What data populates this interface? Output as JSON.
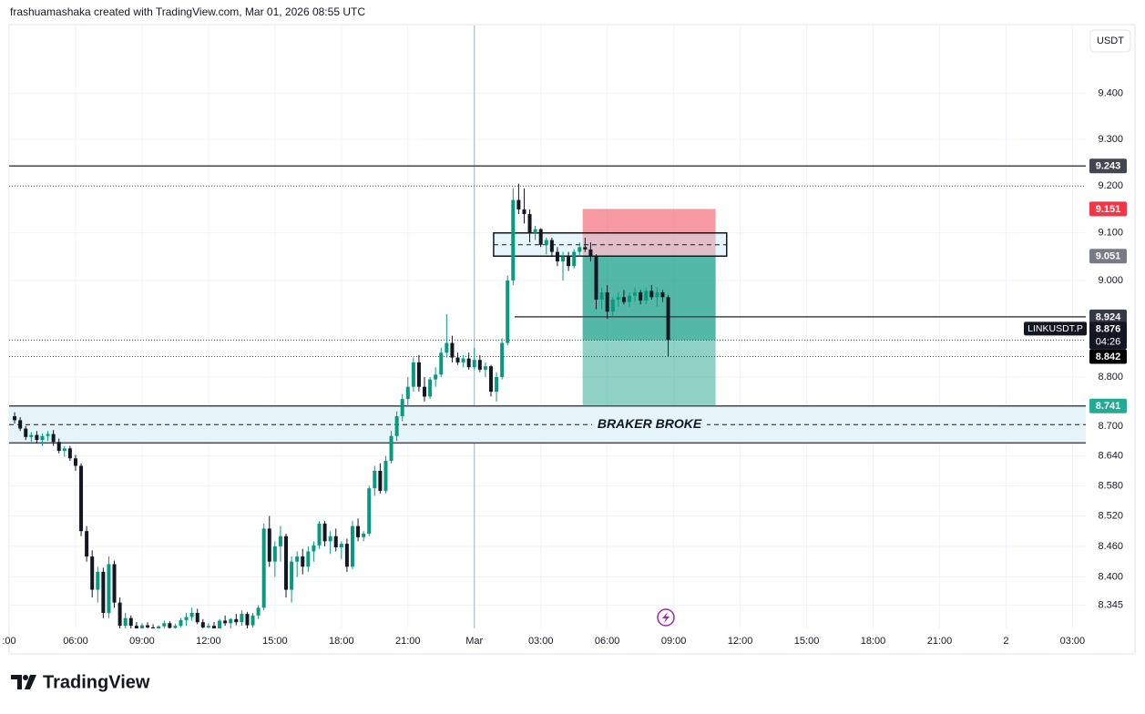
{
  "header": {
    "attribution": "frashuamashaka created with TradingView.com, Mar 01, 2026 08:55 UTC",
    "logo": "TradingView"
  },
  "chart_data": {
    "type": "candlestick",
    "currency": "USDT",
    "log_scale": true,
    "grid": true,
    "up_color": "#089981",
    "down_color": "#131722",
    "xlim": [
      3,
      51.6
    ],
    "xticks": [
      {
        "value": 3,
        "label": ":00"
      },
      {
        "value": 6,
        "label": "06:00"
      },
      {
        "value": 9,
        "label": "09:00"
      },
      {
        "value": 12,
        "label": "12:00"
      },
      {
        "value": 15,
        "label": "15:00"
      },
      {
        "value": 18,
        "label": "18:00"
      },
      {
        "value": 21,
        "label": "21:00"
      },
      {
        "value": 24,
        "label": "Mar"
      },
      {
        "value": 27,
        "label": "03:00"
      },
      {
        "value": 30,
        "label": "06:00"
      },
      {
        "value": 33,
        "label": "09:00"
      },
      {
        "value": 36,
        "label": "12:00"
      },
      {
        "value": 39,
        "label": "15:00"
      },
      {
        "value": 42,
        "label": "18:00"
      },
      {
        "value": 45,
        "label": "21:00"
      },
      {
        "value": 48,
        "label": "2"
      },
      {
        "value": 51,
        "label": "03:00"
      }
    ],
    "ylim": [
      8.3,
      9.55
    ],
    "yticks": [
      {
        "value": 9.4,
        "label": "9.400"
      },
      {
        "value": 9.3,
        "label": "9.300"
      },
      {
        "value": 9.2,
        "label": "9.200"
      },
      {
        "value": 9.1,
        "label": "9.100"
      },
      {
        "value": 9,
        "label": "9.000"
      },
      {
        "value": 8.8,
        "label": "8.800"
      },
      {
        "value": 8.7,
        "label": "8.700"
      },
      {
        "value": 8.64,
        "label": "8.640"
      },
      {
        "value": 8.58,
        "label": "8.580"
      },
      {
        "value": 8.52,
        "label": "8.520"
      },
      {
        "value": 8.46,
        "label": "8.460"
      },
      {
        "value": 8.4,
        "label": "8.400"
      },
      8.345
    ],
    "x": [
      3.25,
      3.5,
      3.75,
      4,
      4.25,
      4.5,
      4.75,
      5,
      5.25,
      5.5,
      5.75,
      6,
      6.25,
      6.5,
      6.75,
      7,
      7.25,
      7.5,
      7.75,
      8,
      8.25,
      8.5,
      8.75,
      9,
      9.25,
      9.5,
      9.75,
      10,
      10.25,
      10.5,
      10.75,
      11,
      11.25,
      11.5,
      11.75,
      12,
      12.25,
      12.5,
      12.75,
      13,
      13.25,
      13.5,
      13.75,
      14,
      14.25,
      14.5,
      14.75,
      15,
      15.25,
      15.5,
      15.75,
      16,
      16.25,
      16.5,
      16.75,
      17,
      17.25,
      17.5,
      17.75,
      18,
      18.25,
      18.5,
      18.75,
      19,
      19.25,
      19.5,
      19.75,
      20,
      20.25,
      20.5,
      20.75,
      21,
      21.25,
      21.5,
      21.75,
      22,
      22.25,
      22.5,
      22.75,
      23,
      23.25,
      23.5,
      23.75,
      24,
      24.25,
      24.5,
      24.75,
      25,
      25.25,
      25.5,
      25.75,
      26,
      26.25,
      26.5,
      26.75,
      27,
      27.25,
      27.5,
      27.75,
      28,
      28.25,
      28.5,
      28.75,
      29,
      29.25,
      29.5,
      29.75,
      30,
      30.25,
      30.5,
      30.75,
      31,
      31.25,
      31.5,
      31.75,
      32,
      32.25,
      32.5,
      32.75
    ],
    "open": [
      8.72,
      8.712,
      8.695,
      8.678,
      8.682,
      8.672,
      8.68,
      8.684,
      8.668,
      8.65,
      8.655,
      8.635,
      8.62,
      8.49,
      8.44,
      8.375,
      8.41,
      8.33,
      8.425,
      8.35,
      8.305,
      8.32,
      8.305,
      8.3,
      8.306,
      8.302,
      8.299,
      8.304,
      8.31,
      8.301,
      8.305,
      8.316,
      8.322,
      8.33,
      8.312,
      8.302,
      8.305,
      8.3,
      8.315,
      8.31,
      8.318,
      8.312,
      8.328,
      8.306,
      8.325,
      8.34,
      8.495,
      8.43,
      8.46,
      8.48,
      8.375,
      8.43,
      8.44,
      8.42,
      8.45,
      8.462,
      8.505,
      8.47,
      8.48,
      8.458,
      8.465,
      8.42,
      8.5,
      8.478,
      8.485,
      8.575,
      8.61,
      8.57,
      8.63,
      8.68,
      8.72,
      8.755,
      8.78,
      8.83,
      8.78,
      8.76,
      8.795,
      8.805,
      8.85,
      8.87,
      8.84,
      8.83,
      8.838,
      8.82,
      8.835,
      8.815,
      8.822,
      8.77,
      8.8,
      8.87,
      9,
      9.17,
      9.15,
      9.14,
      9.1,
      9.108,
      9.075,
      9.085,
      9.06,
      9.04,
      9.05,
      9.03,
      9.06,
      9.07,
      9.065,
      9.05,
      8.96,
      8.975,
      8.935,
      8.96,
      8.965,
      8.955,
      8.968,
      8.975,
      8.958,
      8.978,
      8.965,
      8.975,
      8.965
    ],
    "high": [
      8.728,
      8.718,
      8.7,
      8.688,
      8.69,
      8.685,
      8.69,
      8.692,
      8.675,
      8.66,
      8.66,
      8.642,
      8.625,
      8.5,
      8.452,
      8.42,
      8.418,
      8.44,
      8.432,
      8.36,
      8.33,
      8.325,
      8.312,
      8.31,
      8.312,
      8.308,
      8.306,
      8.315,
      8.314,
      8.309,
      8.32,
      8.33,
      8.34,
      8.338,
      8.318,
      8.31,
      8.312,
      8.318,
      8.325,
      8.32,
      8.328,
      8.335,
      8.332,
      8.33,
      8.345,
      8.505,
      8.52,
      8.47,
      8.5,
      8.485,
      8.44,
      8.45,
      8.455,
      8.46,
      8.47,
      8.51,
      8.51,
      8.49,
      8.495,
      8.47,
      8.475,
      8.51,
      8.515,
      8.49,
      8.58,
      8.62,
      8.625,
      8.64,
      8.69,
      8.73,
      8.765,
      8.8,
      8.84,
      8.845,
      8.8,
      8.8,
      8.82,
      8.86,
      8.93,
      8.885,
      8.85,
      8.845,
      8.85,
      8.86,
      8.845,
      8.83,
      8.825,
      8.81,
      8.88,
      9.01,
      9.195,
      9.205,
      9.195,
      9.15,
      9.115,
      9.11,
      9.09,
      9.09,
      9.07,
      9.06,
      9.06,
      9.065,
      9.08,
      9.09,
      9.08,
      9.055,
      8.985,
      8.99,
      8.965,
      8.975,
      8.98,
      8.975,
      8.985,
      8.98,
      8.985,
      8.99,
      8.985,
      8.98,
      8.97
    ],
    "low": [
      8.705,
      8.69,
      8.672,
      8.668,
      8.665,
      8.66,
      8.67,
      8.66,
      8.645,
      8.638,
      8.63,
      8.61,
      8.48,
      8.43,
      8.36,
      8.35,
      8.32,
      8.32,
      8.34,
      8.295,
      8.298,
      8.3,
      8.296,
      8.296,
      8.298,
      8.296,
      8.296,
      8.3,
      8.298,
      8.297,
      8.302,
      8.305,
      8.315,
      8.308,
      8.298,
      8.296,
      8.298,
      8.298,
      8.305,
      8.3,
      8.306,
      8.305,
      8.3,
      8.302,
      8.318,
      8.335,
      8.42,
      8.4,
      8.43,
      8.36,
      8.35,
      8.4,
      8.405,
      8.41,
      8.43,
      8.455,
      8.46,
      8.445,
      8.45,
      8.435,
      8.41,
      8.415,
      8.47,
      8.47,
      8.48,
      8.56,
      8.565,
      8.565,
      8.625,
      8.67,
      8.71,
      8.74,
      8.77,
      8.77,
      8.75,
      8.755,
      8.78,
      8.8,
      8.84,
      8.83,
      8.825,
      8.82,
      8.815,
      8.815,
      8.81,
      8.8,
      8.76,
      8.75,
      8.795,
      8.865,
      8.99,
      9.14,
      9.12,
      9.08,
      9.085,
      9.07,
      9.055,
      9.05,
      9.03,
      9,
      9.02,
      9.025,
      9.05,
      9.06,
      9.04,
      8.94,
      8.94,
      8.92,
      8.925,
      8.945,
      8.95,
      8.945,
      8.955,
      8.95,
      8.95,
      8.96,
      8.945,
      8.955,
      8.842
    ],
    "close": [
      8.712,
      8.695,
      8.678,
      8.682,
      8.672,
      8.68,
      8.684,
      8.668,
      8.65,
      8.655,
      8.635,
      8.62,
      8.49,
      8.44,
      8.375,
      8.41,
      8.33,
      8.425,
      8.35,
      8.305,
      8.32,
      8.305,
      8.3,
      8.306,
      8.302,
      8.299,
      8.304,
      8.31,
      8.301,
      8.305,
      8.316,
      8.322,
      8.33,
      8.312,
      8.302,
      8.305,
      8.3,
      8.315,
      8.31,
      8.318,
      8.312,
      8.328,
      8.306,
      8.325,
      8.34,
      8.495,
      8.43,
      8.46,
      8.48,
      8.375,
      8.43,
      8.44,
      8.42,
      8.45,
      8.462,
      8.505,
      8.47,
      8.48,
      8.458,
      8.465,
      8.42,
      8.5,
      8.478,
      8.485,
      8.575,
      8.61,
      8.57,
      8.63,
      8.68,
      8.72,
      8.755,
      8.78,
      8.83,
      8.78,
      8.76,
      8.795,
      8.805,
      8.85,
      8.87,
      8.84,
      8.83,
      8.838,
      8.82,
      8.835,
      8.815,
      8.822,
      8.77,
      8.8,
      8.87,
      9,
      9.17,
      9.15,
      9.14,
      9.1,
      9.108,
      9.075,
      9.085,
      9.06,
      9.04,
      9.05,
      9.03,
      9.06,
      9.07,
      9.065,
      9.05,
      8.96,
      8.975,
      8.935,
      8.96,
      8.965,
      8.955,
      8.968,
      8.975,
      8.958,
      8.978,
      8.965,
      8.975,
      8.965,
      8.876
    ],
    "price_labels": [
      9.243,
      9.151,
      9.051,
      8.924,
      8.842,
      8.741
    ],
    "price_label_colors": [
      "#434651",
      "#f23645",
      "#787b86",
      "#363a45",
      "#000000",
      "#22ab94"
    ],
    "current_price": {
      "value": 8.876,
      "symbol": "LINKUSDT.P",
      "countdown": "04:26",
      "color": "#131722"
    },
    "lines": [
      {
        "value": 9.243,
        "from": 3
      },
      {
        "value": 8.924,
        "from": 25.82
      }
    ],
    "dotted_lines": [
      9.2,
      8.876,
      8.842
    ],
    "box": {
      "x": [
        24.87,
        35.39
      ],
      "top": 9.1,
      "mid": 9.075,
      "bottom": 9.051
    },
    "position": {
      "x": [
        28.89,
        34.89
      ],
      "stop": 9.151,
      "entry": 9.051,
      "target": 8.741
    },
    "zone": {
      "top": 8.741,
      "mid": 8.703,
      "bottom": 8.666,
      "label": "BRAKER BROKE",
      "color": "#e4f4f8"
    }
  }
}
